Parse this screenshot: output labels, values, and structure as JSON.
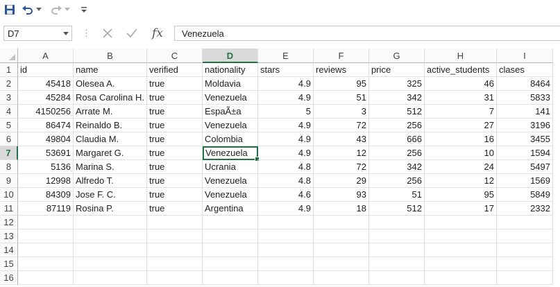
{
  "toolbar": {
    "items": [
      "save-icon",
      "undo-icon",
      "undo-dropdown-icon",
      "redo-icon",
      "redo-dropdown-icon",
      "customize-qat-icon"
    ]
  },
  "formula_bar": {
    "name_box": "D7",
    "fx_label": "fx",
    "formula_value": "Venezuela"
  },
  "sheet": {
    "columns": [
      "A",
      "B",
      "C",
      "D",
      "E",
      "F",
      "G",
      "H",
      "I"
    ],
    "selected_column": "D",
    "selected_row": 7,
    "row_numbers": [
      "1",
      "2",
      "3",
      "4",
      "5",
      "6",
      "7",
      "8",
      "9",
      "10",
      "11",
      "12",
      "13",
      "14",
      "15",
      "16"
    ],
    "header_row": [
      "id",
      "name",
      "verified",
      "nationality",
      "stars",
      "reviews",
      "price",
      "active_students",
      "clases"
    ],
    "rows": [
      [
        "45418",
        "Olesea A.",
        "true",
        "Moldavia",
        "4.9",
        "95",
        "325",
        "46",
        "8464"
      ],
      [
        "45284",
        "Rosa Carolina H.",
        "true",
        "Venezuela",
        "4.9",
        "51",
        "342",
        "31",
        "5833"
      ],
      [
        "4150256",
        "Arrate M.",
        "true",
        "EspaÃ±a",
        "5",
        "3",
        "512",
        "7",
        "141"
      ],
      [
        "86474",
        "Reinaldo B.",
        "true",
        "Venezuela",
        "4.9",
        "72",
        "256",
        "27",
        "3196"
      ],
      [
        "49804",
        "Claudia M.",
        "true",
        "Colombia",
        "4.9",
        "43",
        "666",
        "16",
        "3455"
      ],
      [
        "53691",
        "Margaret G.",
        "true",
        "Venezuela",
        "4.9",
        "12",
        "256",
        "10",
        "1594"
      ],
      [
        "5136",
        "Marina S.",
        "true",
        "Ucrania",
        "4.8",
        "72",
        "342",
        "24",
        "5497"
      ],
      [
        "12998",
        "Alfredo T.",
        "true",
        "Venezuela",
        "4.8",
        "29",
        "256",
        "12",
        "1569"
      ],
      [
        "84309",
        "Jose F. C.",
        "true",
        "Venezuela",
        "4.6",
        "93",
        "51",
        "95",
        "5849"
      ],
      [
        "87119",
        "Rosina P.",
        "true",
        "Argentina",
        "4.9",
        "18",
        "512",
        "17",
        "2332"
      ]
    ]
  }
}
